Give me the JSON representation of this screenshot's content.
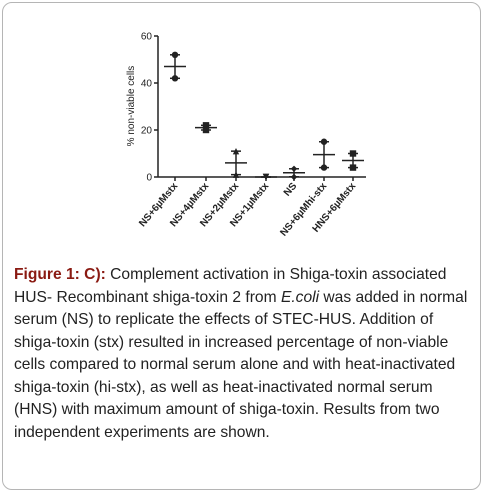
{
  "chart_data": {
    "type": "dot-plot",
    "y_label": "% non-viable cells",
    "categories": [
      "NS+6µMstx",
      "NS+4µMstx",
      "NS+2µMstx",
      "NS+1µMstx",
      "NS",
      "NS+6µMhi-stx",
      "HNS+6µMstx"
    ],
    "points": [
      [
        52,
        42
      ],
      [
        22,
        20
      ],
      [
        11,
        1
      ],
      [
        0,
        0
      ],
      [
        3.5,
        0
      ],
      [
        15,
        4
      ],
      [
        10,
        4
      ]
    ],
    "means": [
      47,
      21,
      6,
      0,
      1.8,
      9.5,
      7
    ],
    "sd": [
      5,
      1,
      5,
      0,
      1.7,
      5.5,
      3
    ],
    "ylim": [
      0,
      60
    ],
    "yticks": [
      0,
      20,
      40,
      60
    ],
    "color": "#222222"
  },
  "caption": {
    "label": "Figure 1: C):",
    "text_before": " Complement activation in Shiga-toxin associated HUS- Recombinant shiga-toxin 2 from ",
    "italic": "E.coli",
    "text_after": " was added in normal serum (NS) to replicate the effects of STEC-HUS. Addition of shiga-toxin (stx) resulted in increased percentage of non-viable cells compared to normal serum alone and with heat-inactivated shiga-toxin (hi-stx), as well as heat-inactivated normal serum (HNS) with maximum amount of shiga-toxin. Results from two independent experiments are shown."
  }
}
